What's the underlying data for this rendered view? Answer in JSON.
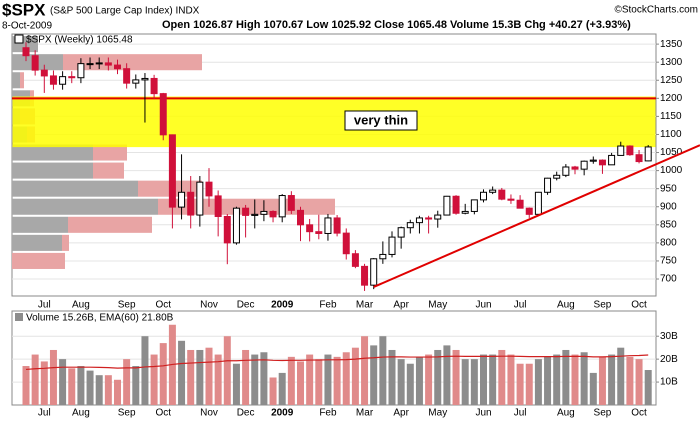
{
  "header": {
    "symbol": "$SPX",
    "name": "(S&P 500 Large Cap Index) INDX",
    "copyright": "©StockCharts.com",
    "date": "8-Oct-2009",
    "stats": "Open 1026.87 High 1070.67 Low 1025.92 Close 1065.48 Volume 15.3B Chg +40.27 (+3.93%)"
  },
  "chart_data": [
    {
      "type": "candlestick",
      "legend": "$SPX (Weekly) 1065.48",
      "categories": [
        null,
        null,
        "Jul",
        null,
        null,
        null,
        "Aug",
        null,
        null,
        null,
        null,
        "Sep",
        null,
        null,
        null,
        "Oct",
        null,
        null,
        null,
        null,
        "Nov",
        null,
        null,
        null,
        "Dec",
        null,
        null,
        null,
        "2009",
        null,
        null,
        null,
        null,
        "Feb",
        null,
        null,
        null,
        "Mar",
        null,
        null,
        null,
        "Apr",
        null,
        null,
        null,
        "May",
        null,
        null,
        null,
        null,
        "Jun",
        null,
        null,
        null,
        "Jul",
        null,
        null,
        null,
        null,
        "Aug",
        null,
        null,
        null,
        "Sep",
        null,
        null,
        null,
        "Oct",
        null
      ],
      "open": [
        1340,
        1318,
        1278,
        1262,
        1239,
        1260,
        1257,
        1296,
        1296,
        1298,
        1292,
        1282,
        1242,
        1251,
        1255,
        1213,
        1099,
        899,
        940,
        877,
        968,
        930,
        873,
        800,
        896,
        876,
        879,
        887,
        872,
        931,
        890,
        850,
        831,
        826,
        869,
        827,
        770,
        735,
        683,
        756,
        768,
        816,
        842,
        856,
        869,
        866,
        877,
        929,
        882,
        887,
        919,
        940,
        946,
        921,
        918,
        896,
        879,
        940,
        979,
        987,
        1010,
        1004,
        1026,
        1029,
        1016,
        1042,
        1068,
        1044,
        1026.87
      ],
      "high": [
        1355,
        1333,
        1293,
        1277,
        1275,
        1275,
        1311,
        1313,
        1313,
        1313,
        1307,
        1297,
        1266,
        1270,
        1265,
        1215,
        1100,
        1045,
        985,
        985,
        1007,
        945,
        880,
        900,
        905,
        920,
        918,
        890,
        935,
        943,
        900,
        866,
        878,
        880,
        877,
        840,
        780,
        742,
        758,
        804,
        832,
        845,
        864,
        875,
        875,
        889,
        930,
        932,
        908,
        920,
        948,
        956,
        952,
        934,
        932,
        898,
        941,
        980,
        997,
        1018,
        1013,
        1028,
        1039,
        1031,
        1049,
        1080,
        1070,
        1057,
        1070.67
      ],
      "low": [
        1303,
        1263,
        1215,
        1224,
        1224,
        1242,
        1242,
        1281,
        1281,
        1277,
        1267,
        1227,
        1227,
        1133,
        1198,
        1084,
        840,
        865,
        840,
        845,
        900,
        818,
        741,
        795,
        815,
        840,
        860,
        857,
        857,
        880,
        805,
        804,
        810,
        806,
        818,
        754,
        730,
        667,
        672,
        742,
        760,
        784,
        826,
        826,
        826,
        842,
        877,
        878,
        879,
        879,
        912,
        935,
        918,
        908,
        896,
        869,
        875,
        933,
        973,
        982,
        990,
        987,
        1019,
        991,
        1016,
        1042,
        1041,
        1020,
        1025.92
      ],
      "close": [
        1318,
        1278,
        1262,
        1239,
        1260,
        1257,
        1296,
        1296,
        1298,
        1292,
        1282,
        1242,
        1251,
        1255,
        1213,
        1099,
        899,
        940,
        877,
        968,
        930,
        873,
        800,
        896,
        876,
        879,
        887,
        872,
        931,
        890,
        850,
        831,
        826,
        869,
        827,
        770,
        735,
        683,
        756,
        768,
        816,
        842,
        856,
        869,
        866,
        877,
        929,
        882,
        887,
        919,
        940,
        946,
        921,
        918,
        896,
        879,
        940,
        979,
        987,
        1010,
        1004,
        1026,
        1029,
        1016,
        1042,
        1068,
        1044,
        1025,
        1065.48
      ],
      "up_color": "#000000",
      "down_color": "#d0103a",
      "ylim": [
        653,
        1378
      ],
      "yticks": [
        700,
        750,
        800,
        850,
        900,
        950,
        1000,
        1050,
        1100,
        1150,
        1200,
        1250,
        1300,
        1350
      ],
      "grid": true,
      "zone": {
        "range": [
          1065,
          1205
        ],
        "color": "#ffff00"
      },
      "annotation": "very thin",
      "hline": {
        "value": 1200,
        "color": "#e00000"
      },
      "trendline": {
        "x": [
          38,
          68
        ],
        "y": [
          678,
          1008
        ],
        "color": "#e00000"
      },
      "volume_by_price": {
        "bins": [
          675,
          725,
          775,
          825,
          875,
          925,
          975,
          1025,
          1075,
          1125,
          1175,
          1225,
          1275,
          1325,
          1375
        ],
        "up": [
          0,
          0,
          50,
          56,
          146,
          126,
          81,
          81,
          15,
          8,
          18,
          8,
          51,
          26
        ],
        "down": [
          0,
          53,
          7,
          84,
          177,
          64,
          31,
          34,
          8,
          15,
          4,
          4,
          139,
          0
        ],
        "up_color": "#a8a8a8",
        "down_color": "#e8a4a4"
      }
    },
    {
      "type": "bar",
      "legend": "Volume 15.26B, EMA(60) 21.80B",
      "values": [
        17,
        22,
        19,
        24,
        20,
        16,
        17,
        15,
        13,
        13,
        11,
        20,
        17,
        30,
        22,
        27,
        35,
        28,
        24,
        24,
        25,
        22,
        30,
        18,
        24,
        22,
        23,
        12,
        14,
        21,
        19,
        22,
        20,
        22,
        21,
        23,
        25,
        30,
        26,
        30,
        24,
        20,
        18,
        21,
        22,
        24,
        26,
        24,
        20,
        20,
        22,
        22,
        24,
        22,
        18,
        18,
        20,
        21,
        22,
        24,
        22,
        23,
        14,
        21,
        22,
        25,
        21,
        20,
        15.26
      ],
      "ema": [
        15.5,
        15.8,
        16.0,
        16.3,
        16.5,
        16.5,
        16.5,
        16.5,
        16.4,
        16.3,
        16.1,
        16.2,
        16.2,
        16.6,
        16.8,
        17.1,
        17.7,
        18.1,
        18.3,
        18.5,
        18.7,
        18.9,
        19.3,
        19.3,
        19.5,
        19.6,
        19.7,
        19.5,
        19.4,
        19.5,
        19.5,
        19.6,
        19.6,
        19.7,
        19.7,
        19.8,
        20.0,
        20.4,
        20.6,
        20.9,
        21.0,
        21.0,
        20.9,
        20.9,
        20.9,
        21.0,
        21.2,
        21.3,
        21.2,
        21.2,
        21.2,
        21.2,
        21.3,
        21.3,
        21.2,
        21.1,
        21.1,
        21.1,
        21.1,
        21.2,
        21.2,
        21.2,
        21.0,
        21.0,
        21.1,
        21.3,
        21.5,
        21.6,
        21.8
      ],
      "up_color": "#8c8c8c",
      "down_color": "#e08a8a",
      "ema_color": "#d02020",
      "ylim": [
        0,
        41
      ],
      "yticks": [
        {
          "value": 10,
          "label": "10B"
        },
        {
          "value": 20,
          "label": "20B"
        },
        {
          "value": 30,
          "label": "30B"
        }
      ],
      "grid": true
    }
  ]
}
